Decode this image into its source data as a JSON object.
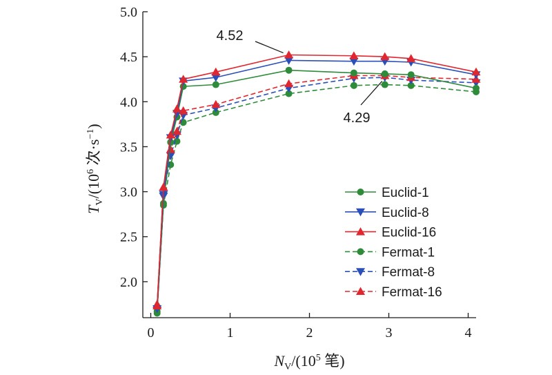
{
  "chart_data": {
    "type": "line",
    "xlabel": {
      "var": "N",
      "sub": "V",
      "prefix": "/(10",
      "sup": "5",
      "suffix": " 笔)"
    },
    "ylabel": {
      "var": "T",
      "sub": "V",
      "prefix": "/(10",
      "sup": "6",
      "suffix": " 次·s",
      "sup2": "−1",
      "end": ")"
    },
    "xlim": [
      -0.1,
      4.1
    ],
    "ylim": [
      1.6,
      5.0
    ],
    "xticks": [
      0,
      1,
      2,
      3,
      4
    ],
    "xtick_labels": [
      "0",
      "1",
      "2",
      "3",
      "4"
    ],
    "yticks": [
      2.0,
      2.5,
      3.0,
      3.5,
      4.0,
      4.5,
      5.0
    ],
    "ytick_labels": [
      "2.0",
      "2.5",
      "3.0",
      "3.5",
      "4.0",
      "4.5",
      "5.0"
    ],
    "grid": false,
    "legend_position": "bottom-right",
    "x": [
      0.08,
      0.16,
      0.25,
      0.33,
      0.41,
      0.82,
      1.74,
      2.56,
      2.95,
      3.28,
      4.1
    ],
    "series": [
      {
        "name": "Euclid-1",
        "color": "#2e8b3a",
        "marker": "circle",
        "dash": false,
        "values": [
          1.67,
          2.87,
          3.55,
          3.83,
          4.17,
          4.19,
          4.35,
          4.32,
          4.31,
          4.3,
          4.15
        ]
      },
      {
        "name": "Euclid-8",
        "color": "#2a4fb8",
        "marker": "triangle-down",
        "dash": false,
        "values": [
          1.7,
          2.97,
          3.6,
          3.87,
          4.23,
          4.27,
          4.46,
          4.45,
          4.45,
          4.44,
          4.3
        ]
      },
      {
        "name": "Euclid-16",
        "color": "#e0262e",
        "marker": "triangle-up",
        "dash": false,
        "values": [
          1.73,
          3.05,
          3.63,
          3.92,
          4.25,
          4.33,
          4.52,
          4.51,
          4.5,
          4.48,
          4.33
        ]
      },
      {
        "name": "Fermat-1",
        "color": "#2e8b3a",
        "marker": "circle",
        "dash": true,
        "values": [
          1.65,
          2.85,
          3.3,
          3.56,
          3.77,
          3.88,
          4.09,
          4.18,
          4.19,
          4.18,
          4.11
        ]
      },
      {
        "name": "Fermat-8",
        "color": "#2a4fb8",
        "marker": "triangle-down",
        "dash": true,
        "values": [
          1.68,
          2.95,
          3.4,
          3.63,
          3.85,
          3.93,
          4.15,
          4.26,
          4.27,
          4.24,
          4.21
        ]
      },
      {
        "name": "Fermat-16",
        "color": "#e0262e",
        "marker": "triangle-up",
        "dash": true,
        "values": [
          1.75,
          3.05,
          3.47,
          3.67,
          3.9,
          3.97,
          4.2,
          4.29,
          4.29,
          4.27,
          4.25
        ]
      }
    ],
    "annotations": [
      {
        "text": "4.52",
        "x": 1.74,
        "y": 4.52
      },
      {
        "text": "4.29",
        "x": 2.95,
        "y": 4.29
      }
    ]
  }
}
